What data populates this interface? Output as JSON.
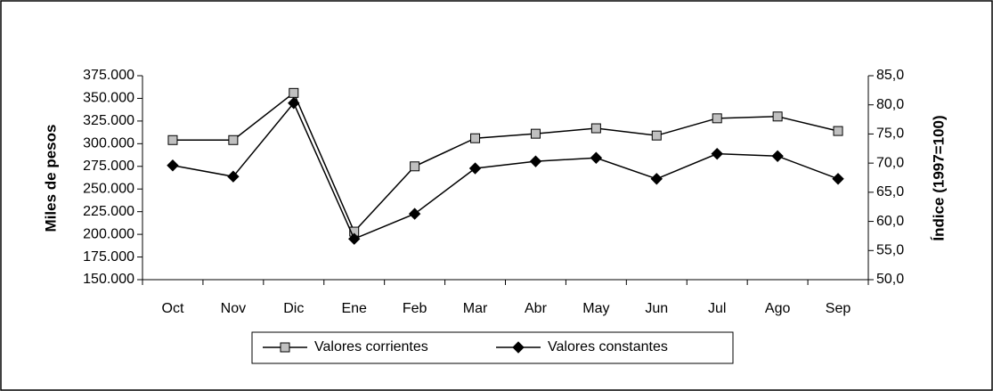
{
  "chart_data": {
    "type": "line",
    "categories": [
      "Oct",
      "Nov",
      "Dic",
      "Ene",
      "Feb",
      "Mar",
      "Abr",
      "May",
      "Jun",
      "Jul",
      "Ago",
      "Sep"
    ],
    "y_label": "Miles de pesos",
    "y2_label": "Índice (1997=100)",
    "ylim": [
      150000,
      375000
    ],
    "yticks": [
      {
        "value": 150000,
        "label": "150.000"
      },
      {
        "value": 175000,
        "label": "175.000"
      },
      {
        "value": 200000,
        "label": "200.000"
      },
      {
        "value": 225000,
        "label": "225.000"
      },
      {
        "value": 250000,
        "label": "250.000"
      },
      {
        "value": 275000,
        "label": "275.000"
      },
      {
        "value": 300000,
        "label": "300.000"
      },
      {
        "value": 325000,
        "label": "325.000"
      },
      {
        "value": 350000,
        "label": "350.000"
      },
      {
        "value": 375000,
        "label": "375.000"
      }
    ],
    "y2lim": [
      50,
      85
    ],
    "y2ticks": [
      {
        "value": 50,
        "label": "50,0"
      },
      {
        "value": 55,
        "label": "55,0"
      },
      {
        "value": 60,
        "label": "60,0"
      },
      {
        "value": 65,
        "label": "65,0"
      },
      {
        "value": 70,
        "label": "70,0"
      },
      {
        "value": 75,
        "label": "75,0"
      },
      {
        "value": 80,
        "label": "80,0"
      },
      {
        "value": 85,
        "label": "85,0"
      }
    ],
    "series": [
      {
        "name": "Valores corrientes",
        "color": "#c0c0c0",
        "marker": "square",
        "values": [
          304000,
          304000,
          356000,
          203000,
          275000,
          306000,
          311000,
          317000,
          309000,
          328000,
          330000,
          314000
        ]
      },
      {
        "name": "Valores constantes",
        "color": "#000000",
        "marker": "diamond",
        "axis": "y2",
        "values": [
          69.6,
          67.7,
          80.3,
          57.0,
          61.3,
          69.1,
          70.3,
          70.9,
          67.3,
          71.6,
          71.2,
          67.3
        ]
      }
    ]
  }
}
